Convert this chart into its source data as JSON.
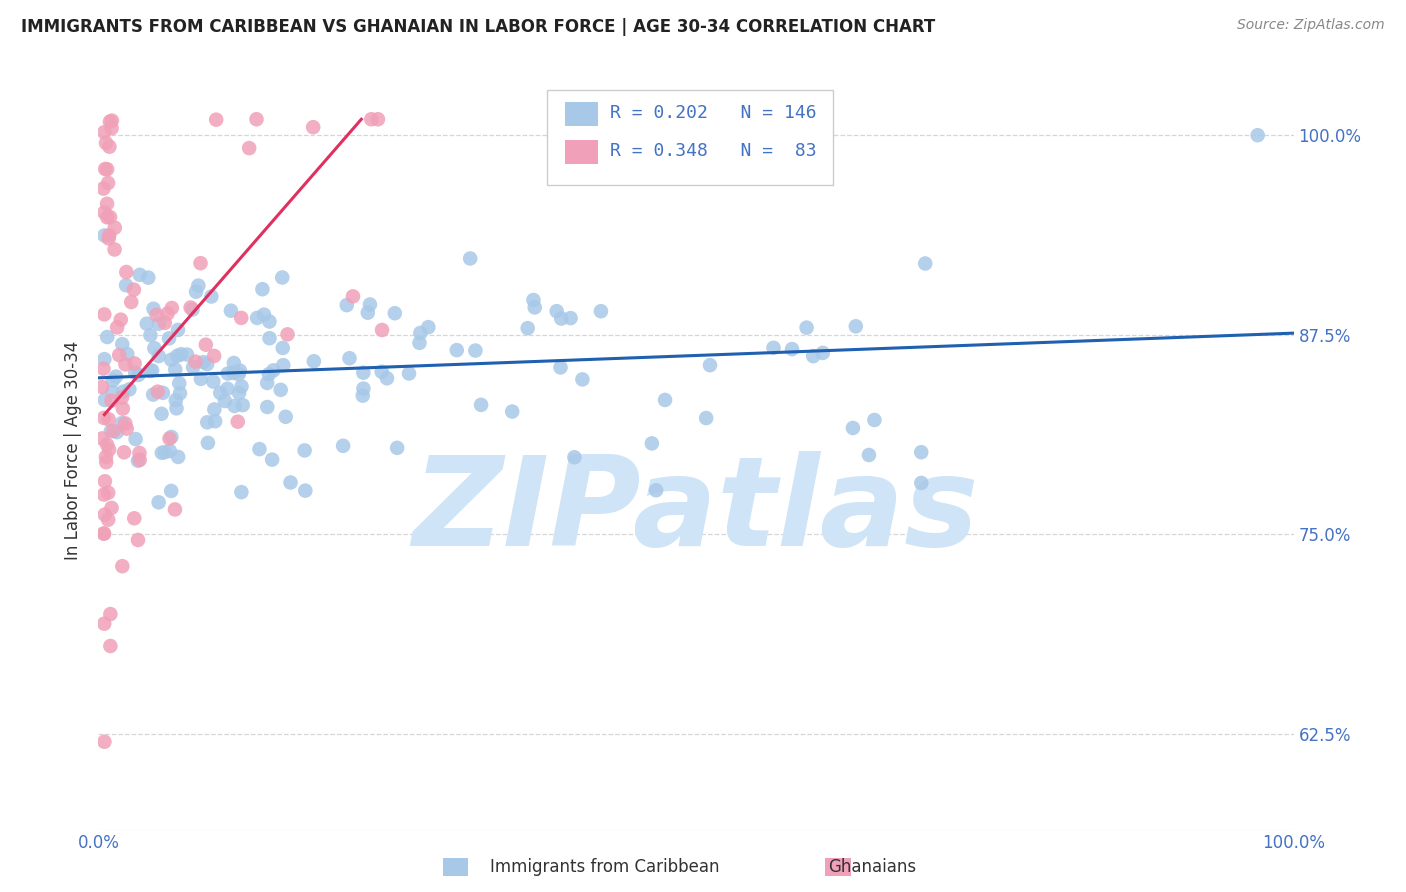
{
  "title": "IMMIGRANTS FROM CARIBBEAN VS GHANAIAN IN LABOR FORCE | AGE 30-34 CORRELATION CHART",
  "source": "Source: ZipAtlas.com",
  "ylabel": "In Labor Force | Age 30-34",
  "yticks": [
    0.625,
    0.75,
    0.875,
    1.0
  ],
  "ytick_labels": [
    "62.5%",
    "75.0%",
    "87.5%",
    "100.0%"
  ],
  "xlim": [
    0.0,
    1.0
  ],
  "ylim": [
    0.565,
    1.04
  ],
  "legend_blue_R": "R = 0.202",
  "legend_blue_N": "N = 146",
  "legend_pink_R": "R = 0.348",
  "legend_pink_N": "N =  83",
  "blue_color": "#A8C8E8",
  "pink_color": "#F0A0B8",
  "blue_line_color": "#2060B0",
  "pink_line_color": "#E03060",
  "label_color": "#4472C4",
  "watermark_color": "#D0E4F7",
  "blue_trend_x": [
    0.0,
    1.0
  ],
  "blue_trend_y": [
    0.848,
    0.876
  ],
  "pink_trend_x": [
    0.005,
    0.22
  ],
  "pink_trend_y": [
    0.825,
    1.01
  ]
}
